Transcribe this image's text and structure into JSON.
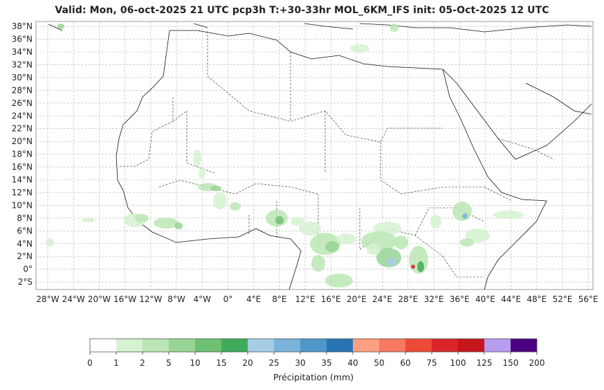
{
  "title": "Valid: Mon, 06-oct-2025   21 UTC   pcp3h   T:+30-33hr   MOL_6KM_IFS   init: 05-Oct-2025    12 UTC",
  "lat_ticks": [
    "38°N",
    "36°N",
    "34°N",
    "32°N",
    "30°N",
    "28°N",
    "26°N",
    "24°N",
    "22°N",
    "20°N",
    "18°N",
    "16°N",
    "14°N",
    "12°N",
    "10°N",
    "8°N",
    "6°N",
    "4°N",
    "2°N",
    "0°",
    "2°S"
  ],
  "lon_ticks": [
    "28°W",
    "24°W",
    "20°W",
    "16°W",
    "12°W",
    "8°W",
    "4°W",
    "0°",
    "4°E",
    "8°E",
    "12°E",
    "16°E",
    "20°E",
    "24°E",
    "28°E",
    "32°E",
    "36°E",
    "40°E",
    "44°E",
    "48°E",
    "52°E",
    "56°E"
  ],
  "colorbar": {
    "title": "Précipitation (mm)",
    "bounds": [
      "0",
      "1",
      "2",
      "5",
      "10",
      "15",
      "20",
      "25",
      "30",
      "35",
      "40",
      "50",
      "60",
      "75",
      "100",
      "125",
      "150",
      "200"
    ],
    "colors": [
      "#ffffff",
      "#d5f2d0",
      "#bce6b5",
      "#98d594",
      "#6ec170",
      "#3fab5b",
      "#a6cde3",
      "#79b3d9",
      "#4f97c9",
      "#2874b3",
      "#fc9f82",
      "#f87961",
      "#ee4a38",
      "#d9252a",
      "#c6161c",
      "#b79cef",
      "#4b0082"
    ]
  }
}
